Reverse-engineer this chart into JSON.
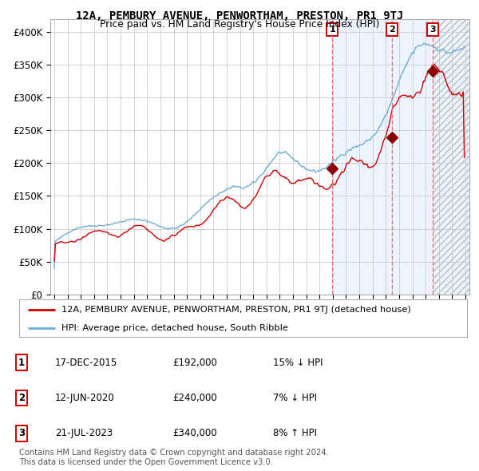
{
  "title": "12A, PEMBURY AVENUE, PENWORTHAM, PRESTON, PR1 9TJ",
  "subtitle": "Price paid vs. HM Land Registry's House Price Index (HPI)",
  "ylim": [
    0,
    420000
  ],
  "yticks": [
    0,
    50000,
    100000,
    150000,
    200000,
    250000,
    300000,
    350000,
    400000
  ],
  "ytick_labels": [
    "£0",
    "£50K",
    "£100K",
    "£150K",
    "£200K",
    "£250K",
    "£300K",
    "£350K",
    "£400K"
  ],
  "hpi_color": "#6baed6",
  "price_color": "#cc0000",
  "marker_color": "#8b0000",
  "vline_color": "#e87878",
  "shade_color": "#ddeeff",
  "grid_color": "#cccccc",
  "background_color": "#ffffff",
  "sale1_x": 2015.96,
  "sale1_price": 192000,
  "sale2_x": 2020.44,
  "sale2_price": 240000,
  "sale3_x": 2023.54,
  "sale3_price": 340000,
  "legend1": "12A, PEMBURY AVENUE, PENWORTHAM, PRESTON, PR1 9TJ (detached house)",
  "legend2": "HPI: Average price, detached house, South Ribble",
  "table_rows": [
    [
      "1",
      "17-DEC-2015",
      "£192,000",
      "15% ↓ HPI"
    ],
    [
      "2",
      "12-JUN-2020",
      "£240,000",
      "7% ↓ HPI"
    ],
    [
      "3",
      "21-JUL-2023",
      "£340,000",
      "8% ↑ HPI"
    ]
  ],
  "footnote1": "Contains HM Land Registry data © Crown copyright and database right 2024.",
  "footnote2": "This data is licensed under the Open Government Licence v3.0.",
  "xstart": 1995,
  "xend": 2026
}
